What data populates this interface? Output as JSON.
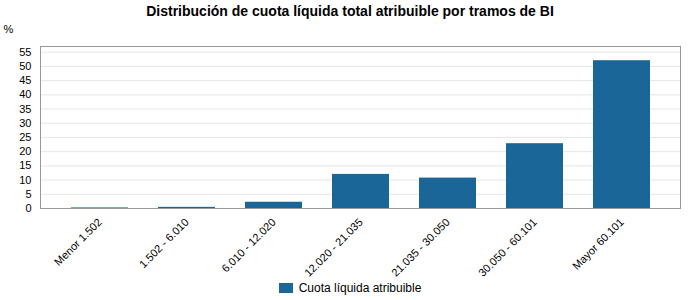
{
  "chart_data": {
    "type": "bar",
    "title": "Distribución de cuota líquida total atribuible por tramos de BI",
    "categories": [
      "Menor 1.502",
      "1.502 - 6.010",
      "6.010 - 12.020",
      "12.020 - 21.035",
      "21.035 - 30.050",
      "30.050 - 60.101",
      "Mayor 60.101"
    ],
    "series": [
      {
        "name": "Cuota líquida atribuible",
        "color": "#1b6699",
        "values": [
          0.2,
          0.4,
          2.2,
          12.0,
          10.7,
          22.8,
          52.0
        ]
      }
    ],
    "ylabel": "%",
    "ylim": [
      0,
      57
    ],
    "yticks": [
      0,
      5,
      10,
      15,
      20,
      25,
      30,
      35,
      40,
      45,
      50,
      55
    ],
    "grid": true,
    "legend": "bottom"
  }
}
